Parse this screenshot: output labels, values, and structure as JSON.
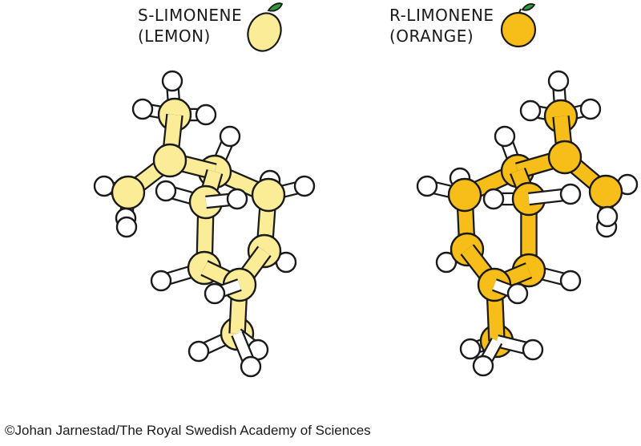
{
  "colors": {
    "lemon": "#fbed97",
    "orange": "#f7be1a",
    "hydrogen": "#ffffff",
    "outline": "#1a1a1a",
    "leaf": "#2d9a3c"
  },
  "molecules": [
    {
      "id": "s-limonene",
      "label_line1": "S-LIMONENE",
      "label_line2": "(LEMON)",
      "fruit_icon": "lemon-icon",
      "carbon_color": "#fbed97"
    },
    {
      "id": "r-limonene",
      "label_line1": "R-LIMONENE",
      "label_line2": "(ORANGE)",
      "fruit_icon": "orange-icon",
      "carbon_color": "#f7be1a"
    }
  ],
  "credit": "©Johan Jarnestad/The Royal Swedish Academy of Sciences"
}
